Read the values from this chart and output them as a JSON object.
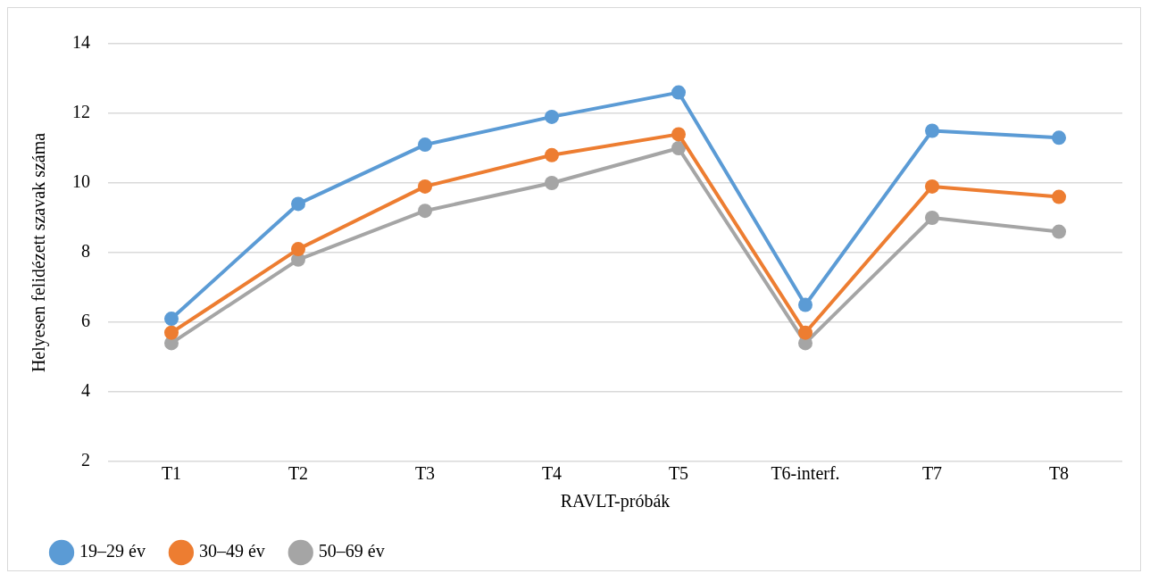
{
  "chart_data": {
    "type": "line",
    "xlabel": "RAVLT-próbák",
    "ylabel": "Helyesen felidézett szavak száma",
    "categories": [
      "T1",
      "T2",
      "T3",
      "T4",
      "T5",
      "T6-interf.",
      "T7",
      "T8"
    ],
    "series": [
      {
        "name": "19–29 év",
        "color": "#5b9bd5",
        "values": [
          6.1,
          9.4,
          11.1,
          11.9,
          12.6,
          6.5,
          11.5,
          11.3
        ]
      },
      {
        "name": "30–49 év",
        "color": "#ed7d31",
        "values": [
          5.7,
          8.1,
          9.9,
          10.8,
          11.4,
          5.7,
          9.9,
          9.6
        ]
      },
      {
        "name": "50–69 év",
        "color": "#a5a5a5",
        "values": [
          5.4,
          7.8,
          9.2,
          10.0,
          11.0,
          5.4,
          9.0,
          8.6
        ]
      }
    ],
    "ylim": [
      2,
      14
    ],
    "yticks": [
      2,
      4,
      6,
      8,
      10,
      12,
      14
    ],
    "grid": "y",
    "legend": "bottom left",
    "marker": "circle",
    "line_style": "solid"
  }
}
